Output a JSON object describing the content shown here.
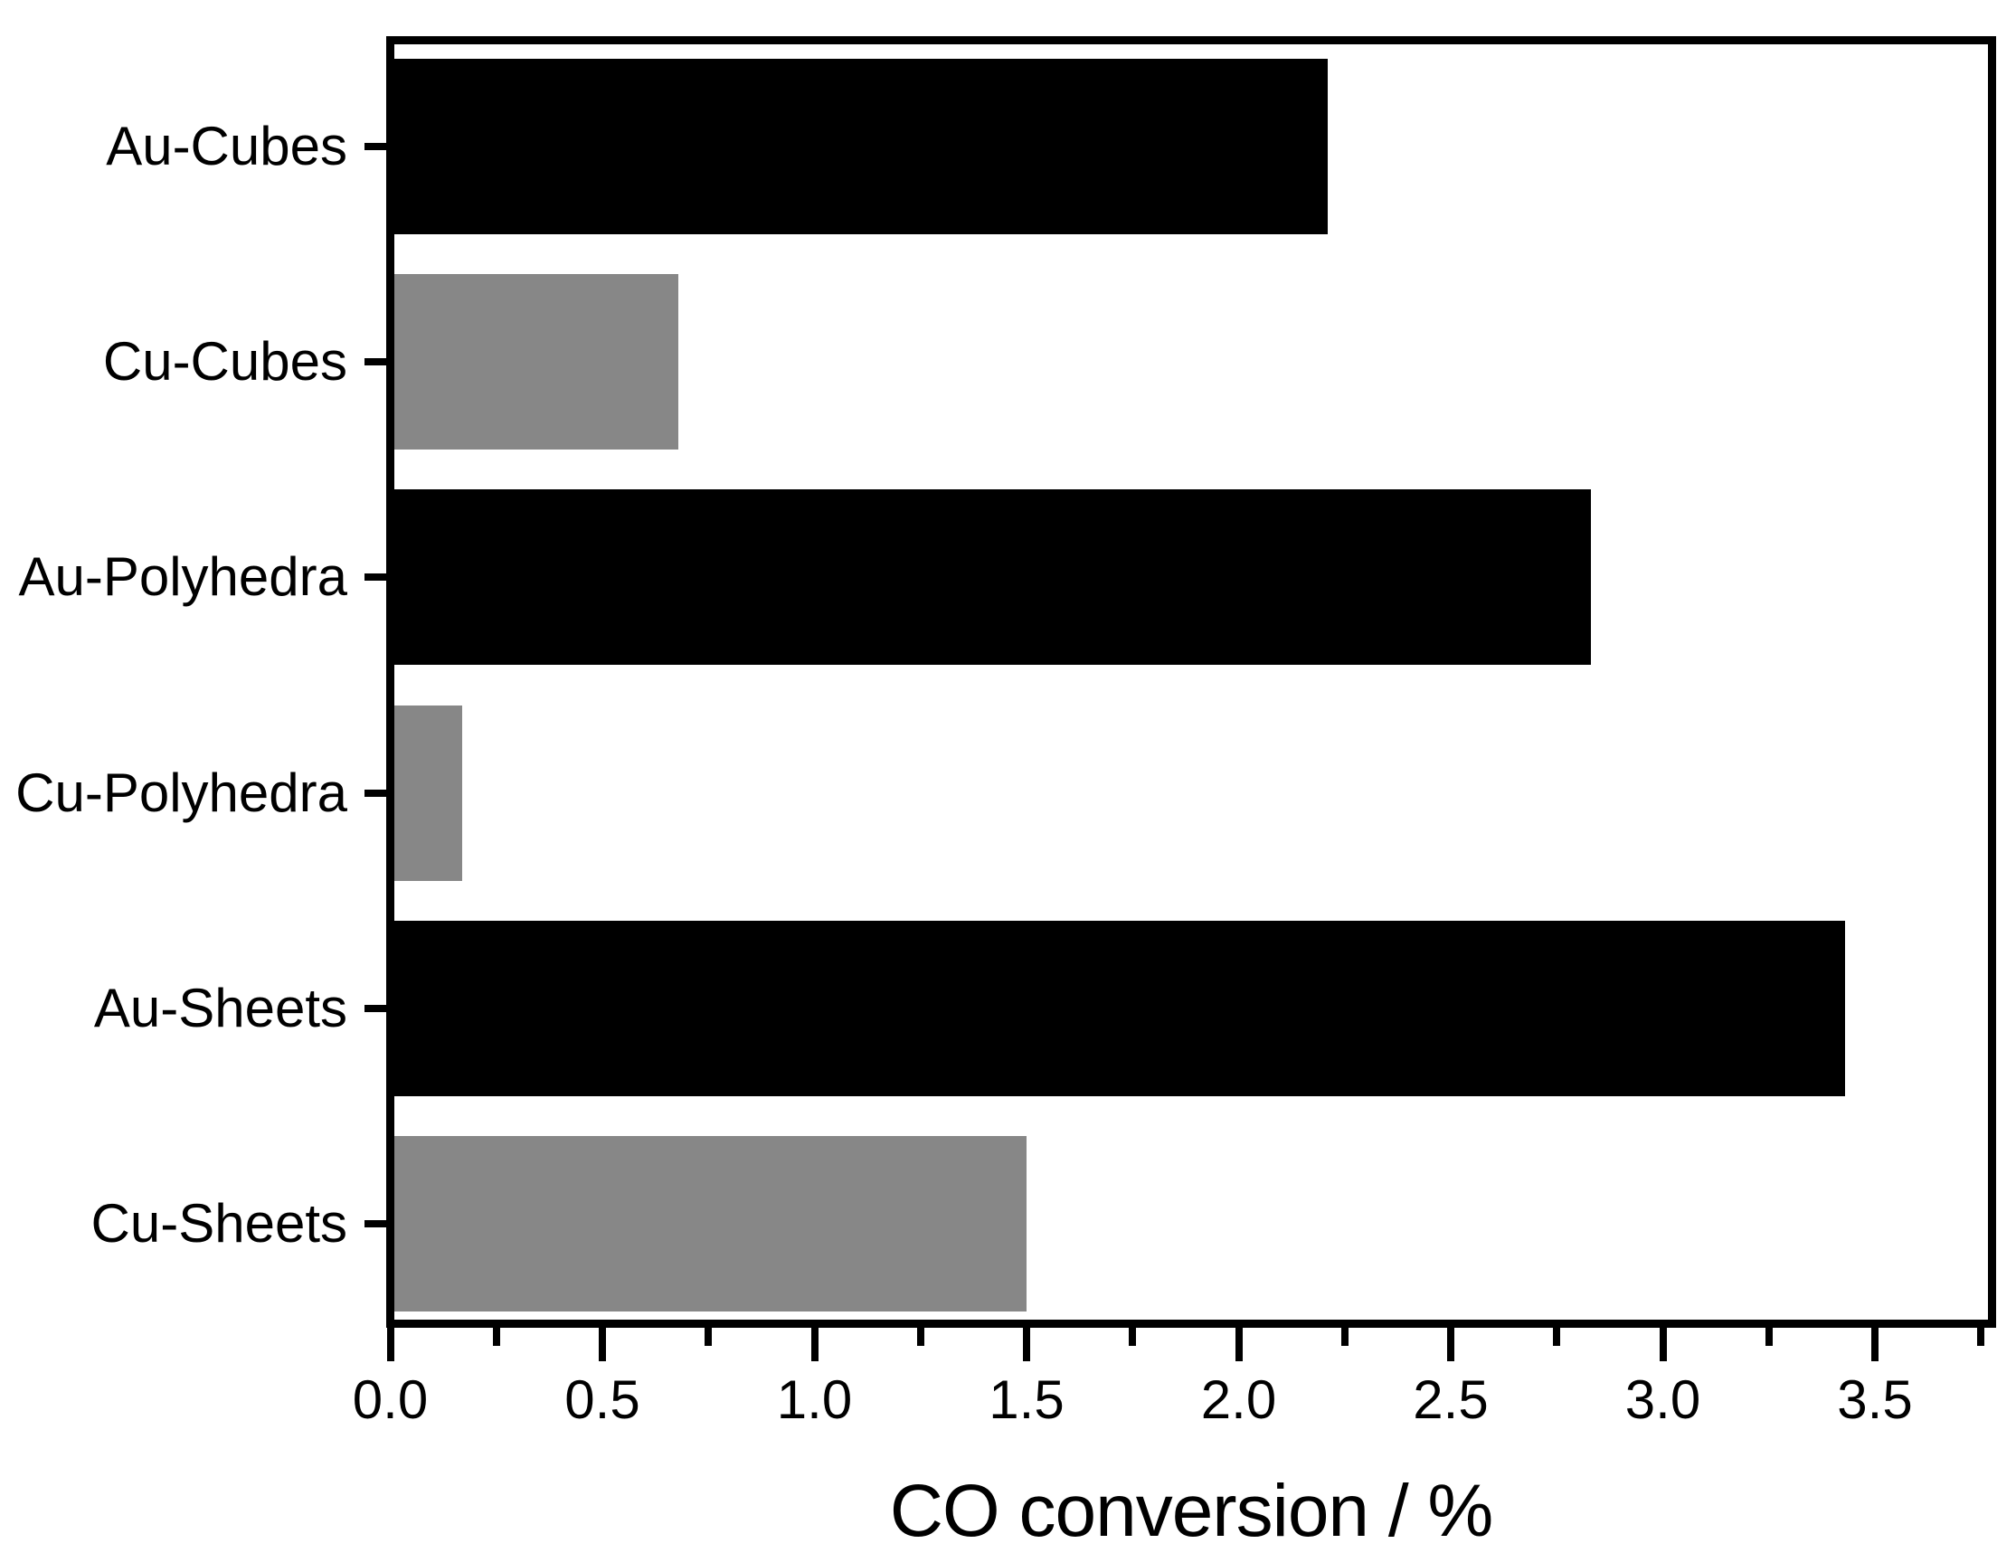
{
  "chart_data": {
    "type": "bar",
    "orientation": "horizontal",
    "title": "",
    "categories": [
      "Au-Cubes",
      "Cu-Cubes",
      "Au-Polyhedra",
      "Cu-Polyhedra",
      "Au-Sheets",
      "Cu-Sheets"
    ],
    "values": [
      2.2,
      0.67,
      2.82,
      0.16,
      3.42,
      1.49
    ],
    "bar_colors": [
      "#000000",
      "#878787",
      "#000000",
      "#878787",
      "#000000",
      "#878787"
    ],
    "series_color_key": {
      "Au": "#000000",
      "Cu": "#878787"
    },
    "xlabel": "CO conversion / %",
    "ylabel": "",
    "xlim": [
      0.0,
      3.76
    ],
    "x_major_ticks": [
      0.0,
      0.5,
      1.0,
      1.5,
      2.0,
      2.5,
      3.0,
      3.5
    ],
    "x_tick_labels": [
      "0.0",
      "0.5",
      "1.0",
      "1.5",
      "2.0",
      "2.5",
      "3.0",
      "3.5"
    ],
    "x_minor_tick_step": 0.25,
    "bar_fraction": 0.82,
    "grid": false,
    "legend": false
  },
  "colors": {
    "background": "#ffffff",
    "frame": "#000000",
    "text": "#000000",
    "black_bar": "#000000",
    "gray_bar": "#878787"
  }
}
